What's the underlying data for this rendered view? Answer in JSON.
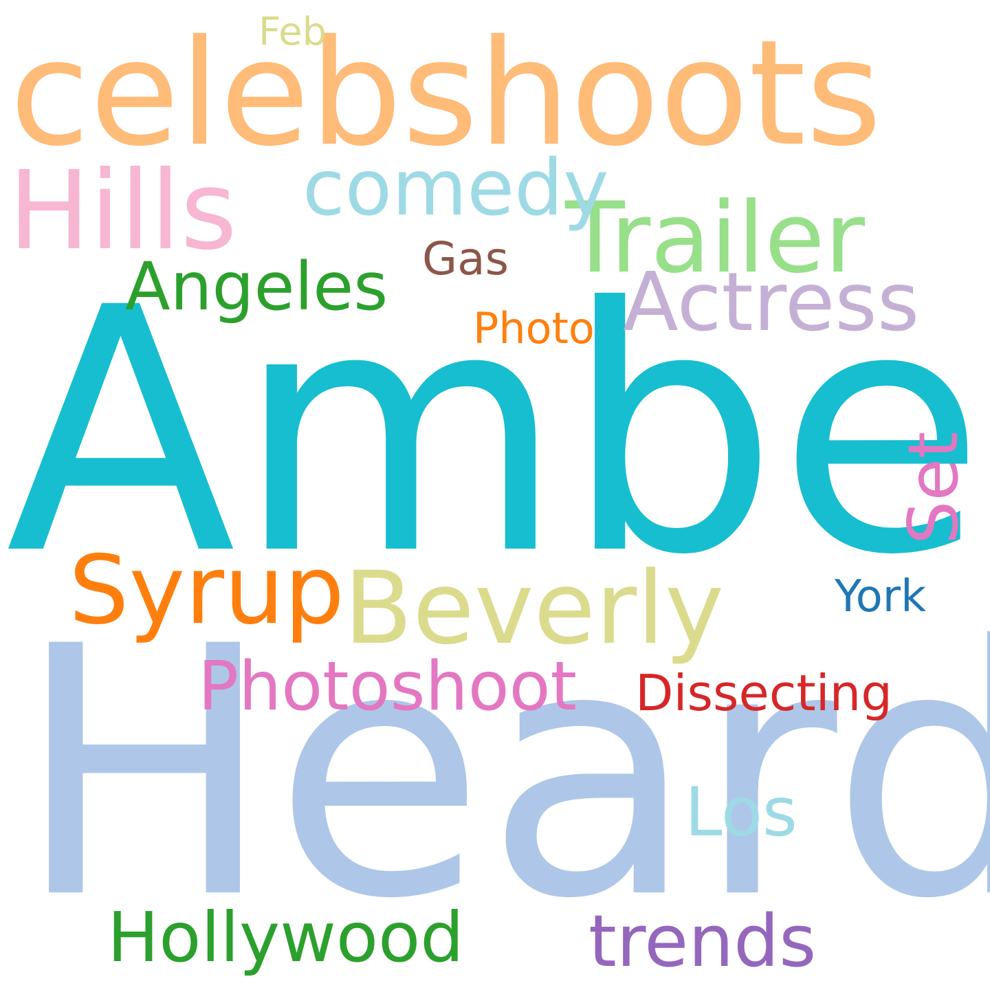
{
  "words": [
    {
      "id": "amber",
      "text": "Amber",
      "color": "#17becf"
    },
    {
      "id": "heard",
      "text": "Heard",
      "color": "#aec7e8"
    },
    {
      "id": "celebshoots",
      "text": "celebshoots",
      "color": "#ffbb78"
    },
    {
      "id": "trailer",
      "text": "Trailer",
      "color": "#98df8a"
    },
    {
      "id": "hills",
      "text": "Hills",
      "color": "#f7b6d2"
    },
    {
      "id": "comedy",
      "text": "comedy",
      "color": "#9edae5"
    },
    {
      "id": "actress",
      "text": "Actress",
      "color": "#c5b0d5"
    },
    {
      "id": "angeles",
      "text": "Angeles",
      "color": "#2ca02c"
    },
    {
      "id": "gas",
      "text": "Gas",
      "color": "#8c564b"
    },
    {
      "id": "photo",
      "text": "Photo",
      "color": "#ff7f0e"
    },
    {
      "id": "feb",
      "text": "Feb",
      "color": "#dbdb8d"
    },
    {
      "id": "set",
      "text": "Set",
      "color": "#e377c2"
    },
    {
      "id": "syrup",
      "text": "Syrup",
      "color": "#ff7f0e"
    },
    {
      "id": "beverly",
      "text": "Beverly",
      "color": "#dbdb8d"
    },
    {
      "id": "york",
      "text": "York",
      "color": "#1f77b4"
    },
    {
      "id": "photoshoot",
      "text": "Photoshoot",
      "color": "#e377c2"
    },
    {
      "id": "dissecting",
      "text": "Dissecting",
      "color": "#d62728"
    },
    {
      "id": "los",
      "text": "Los",
      "color": "#9edae5"
    },
    {
      "id": "hollywood",
      "text": "Hollywood",
      "color": "#2ca02c"
    },
    {
      "id": "trends",
      "text": "trends",
      "color": "#9467bd"
    }
  ]
}
